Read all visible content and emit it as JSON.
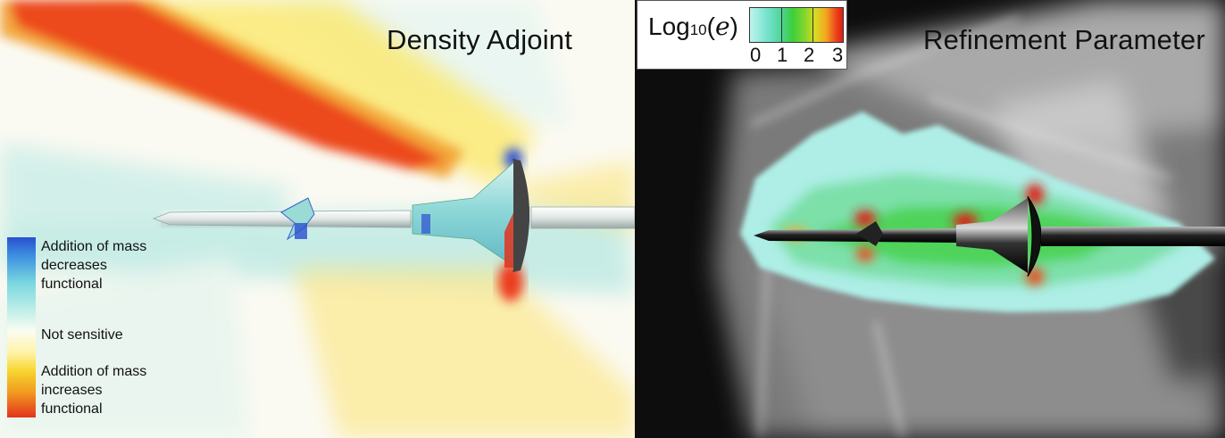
{
  "left_panel": {
    "title": "Density Adjoint",
    "legend": {
      "top_label_lines": [
        "Addition of mass",
        "decreases",
        "functional"
      ],
      "middle_label": "Not sensitive",
      "bottom_label_lines": [
        "Addition of mass",
        "increases",
        "functional"
      ]
    }
  },
  "right_panel": {
    "title": "Refinement Parameter",
    "colorbar": {
      "title_prefix": "Log",
      "title_subscript": "10",
      "title_open": "(",
      "title_var": "e",
      "title_close": ")",
      "ticks": [
        "0",
        "1",
        "2",
        "3"
      ]
    }
  },
  "colors": {
    "negative": "#2a4fd0",
    "neutral": "#fbfcf2",
    "positive": "#e3331c",
    "refine_low": "#bff3ec",
    "refine_mid": "#3ccf3a",
    "refine_high": "#e01a12"
  }
}
